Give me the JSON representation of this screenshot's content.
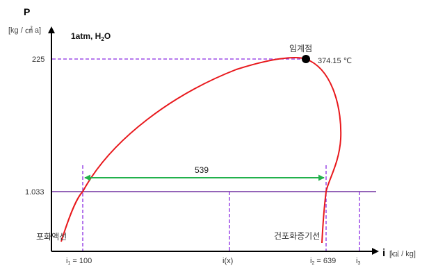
{
  "axes": {
    "y_title": "P",
    "y_unit": "[kg / ㎠ a]",
    "x_title": "i",
    "x_unit": "[㎉ / kg]"
  },
  "condition_label": {
    "main": "1atm, H",
    "sub": "2",
    "tail": "O"
  },
  "y_ticks": {
    "p225": "225",
    "p1033": "1.033"
  },
  "x_ticks": {
    "i1": {
      "base": "i",
      "sub": "1",
      "rest": " = 100"
    },
    "ix": "i(x)",
    "i2": {
      "base": "i",
      "sub": "2",
      "rest": " = 639"
    },
    "i3": {
      "base": "i",
      "sub": "3"
    }
  },
  "critical_point": {
    "label": "임계점",
    "temp": "374.15 ℃"
  },
  "latent_heat": {
    "value": "539"
  },
  "curve_labels": {
    "liquid": "포화액선",
    "vapor": "건포화증기선"
  },
  "colors": {
    "curve": "#e8181c",
    "guide": "#8a2be2",
    "arrow": "#22b14c",
    "axis": "#000000",
    "point": "#000000"
  }
}
